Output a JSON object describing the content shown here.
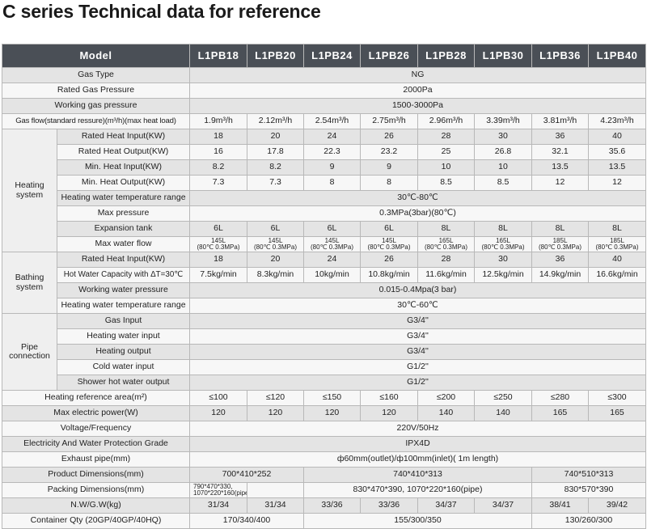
{
  "title": "C series Technical data for reference",
  "header": {
    "model_label": "Model",
    "models": [
      "L1PB18",
      "L1PB20",
      "L1PB24",
      "L1PB26",
      "L1PB28",
      "L1PB30",
      "L1PB36",
      "L1PB40"
    ]
  },
  "rows": {
    "gas_type": {
      "label": "Gas Type",
      "value": "NG"
    },
    "rated_gas_pressure": {
      "label": "Rated Gas Pressure",
      "value": "2000Pa"
    },
    "working_gas_pressure": {
      "label": "Working gas pressure",
      "value": "1500-3000Pa"
    },
    "gas_flow": {
      "label": "Gas flow(standard ressure)(m³/h)(max heat load)",
      "values": [
        "1.9m³/h",
        "2.12m³/h",
        "2.54m³/h",
        "2.75m³/h",
        "2.96m³/h",
        "3.39m³/h",
        "3.81m³/h",
        "4.23m³/h"
      ]
    }
  },
  "heating": {
    "group_line1": "Heating",
    "group_line2": "system",
    "rated_heat_input": {
      "label": "Rated Heat Input(KW)",
      "values": [
        "18",
        "20",
        "24",
        "26",
        "28",
        "30",
        "36",
        "40"
      ]
    },
    "rated_heat_output": {
      "label": "Rated Heat Output(KW)",
      "values": [
        "16",
        "17.8",
        "22.3",
        "23.2",
        "25",
        "26.8",
        "32.1",
        "35.6"
      ]
    },
    "min_heat_input": {
      "label": "Min. Heat Input(KW)",
      "values": [
        "8.2",
        "8.2",
        "9",
        "9",
        "10",
        "10",
        "13.5",
        "13.5"
      ]
    },
    "min_heat_output": {
      "label": "Min. Heat Output(KW)",
      "values": [
        "7.3",
        "7.3",
        "8",
        "8",
        "8.5",
        "8.5",
        "12",
        "12"
      ]
    },
    "water_temp_range": {
      "label": "Heating water temperature range",
      "value": "30℃-80℃"
    },
    "max_pressure": {
      "label": "Max pressure",
      "value": "0.3MPa(3bar)(80℃)"
    },
    "expansion_tank": {
      "label": "Expansion tank",
      "values": [
        "6L",
        "6L",
        "6L",
        "6L",
        "8L",
        "8L",
        "8L",
        "8L"
      ]
    },
    "max_water_flow": {
      "label": "Max water flow",
      "values": [
        "145L",
        "145L",
        "145L",
        "145L",
        "165L",
        "165L",
        "185L",
        "185L"
      ],
      "condition": "(80℃ 0.3MPa)"
    }
  },
  "bathing": {
    "group_line1": "Bathing",
    "group_line2": "system",
    "rated_heat_input": {
      "label": "Rated Heat Input(KW)",
      "values": [
        "18",
        "20",
        "24",
        "26",
        "28",
        "30",
        "36",
        "40"
      ]
    },
    "hot_water_capacity": {
      "label": "Hot Water Capacity with ΔT=30℃",
      "values": [
        "7.5kg/min",
        "8.3kg/min",
        "10kg/min",
        "10.8kg/min",
        "11.6kg/min",
        "12.5kg/min",
        "14.9kg/min",
        "16.6kg/min"
      ]
    },
    "working_water_pressure": {
      "label": "Working water pressure",
      "value": "0.015-0.4Mpa(3 bar)"
    },
    "water_temp_range": {
      "label": "Heating water temperature range",
      "value": "30℃-60℃"
    }
  },
  "pipe": {
    "group_line1": "Pipe",
    "group_line2": "connection",
    "gas_input": {
      "label": "Gas Input",
      "value": "G3/4''"
    },
    "heating_water_input": {
      "label": "Heating water input",
      "value": "G3/4''"
    },
    "heating_output": {
      "label": "Heating output",
      "value": "G3/4''"
    },
    "cold_water_input": {
      "label": "Cold water input",
      "value": "G1/2''"
    },
    "shower_hot_water_output": {
      "label": "Shower hot water output",
      "value": "G1/2''"
    }
  },
  "general": {
    "heating_area": {
      "label": "Heating reference area(m²)",
      "values": [
        "≤100",
        "≤120",
        "≤150",
        "≤160",
        "≤200",
        "≤250",
        "≤280",
        "≤300"
      ]
    },
    "max_power": {
      "label": "Max electric power(W)",
      "values": [
        "120",
        "120",
        "120",
        "120",
        "140",
        "140",
        "165",
        "165"
      ]
    },
    "voltage": {
      "label": "Voltage/Frequency",
      "value": "220V/50Hz"
    },
    "protection": {
      "label": "Electricity And Water Protection Grade",
      "value": "IPX4D"
    },
    "exhaust": {
      "label": "Exhaust pipe(mm)",
      "value": "ф60mm(outlet)/ф100mm(inlet)( 1m length)"
    },
    "product_dim": {
      "label": "Product Dimensions(mm)",
      "values": [
        "700*410*252",
        "740*410*313",
        "740*510*313"
      ]
    },
    "packing_dim": {
      "label": "Packing Dimensions(mm)",
      "first_line1": "790*470*330,",
      "first_line2": "1070*220*160(pipe)",
      "values": [
        "830*470*390, 1070*220*160(pipe)",
        "830*570*390"
      ]
    },
    "weight": {
      "label": "N.W/G.W(kg)",
      "values": [
        "31/34",
        "31/34",
        "33/36",
        "33/36",
        "34/37",
        "34/37",
        "38/41",
        "39/42"
      ]
    },
    "container": {
      "label": "Container Qty (20GP/40GP/40HQ)",
      "values": [
        "170/340/400",
        "155/300/350",
        "130/260/300"
      ]
    }
  }
}
